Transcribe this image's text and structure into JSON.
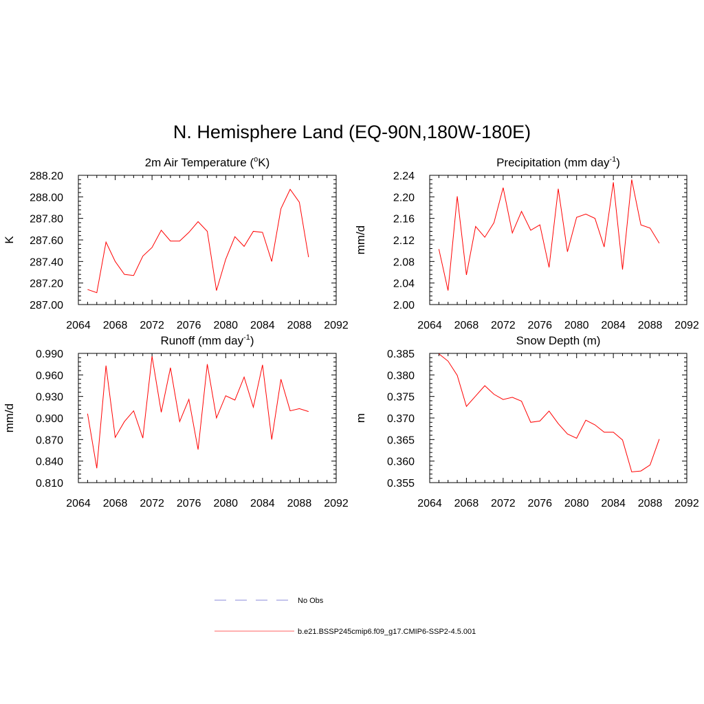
{
  "figure": {
    "title": "N. Hemisphere Land (EQ-90N,180W-180E)"
  },
  "chart_data": [
    {
      "type": "line",
      "title": "2m Air Temperature (",
      "title_sup": "o",
      "title_end": "K)",
      "ylabel": "K",
      "xlabel": "",
      "xlim": [
        2064,
        2092
      ],
      "ylim": [
        287.0,
        288.2
      ],
      "xticks": [
        2064,
        2068,
        2072,
        2076,
        2080,
        2084,
        2088,
        2092
      ],
      "xtick_labels": [
        "2064",
        "2068",
        "2072",
        "2076",
        "2080",
        "2084",
        "2088",
        "2092"
      ],
      "yticks": [
        287.0,
        287.2,
        287.4,
        287.6,
        287.8,
        288.0,
        288.2
      ],
      "ytick_labels": [
        "287.00",
        "287.20",
        "287.40",
        "287.60",
        "287.80",
        "288.00",
        "288.20"
      ],
      "grid": false,
      "series": [
        {
          "color": "#ff0000",
          "x": [
            2065,
            2066,
            2067,
            2068,
            2069,
            2070,
            2071,
            2072,
            2073,
            2074,
            2075,
            2076,
            2077,
            2078,
            2079,
            2080,
            2081,
            2082,
            2083,
            2084,
            2085,
            2086,
            2087,
            2088,
            2089
          ],
          "y": [
            287.14,
            287.11,
            287.58,
            287.4,
            287.28,
            287.27,
            287.45,
            287.53,
            287.69,
            287.59,
            287.59,
            287.67,
            287.77,
            287.68,
            287.13,
            287.42,
            287.63,
            287.54,
            287.68,
            287.67,
            287.4,
            287.89,
            288.07,
            287.95,
            287.44
          ]
        }
      ]
    },
    {
      "type": "line",
      "title": "Precipitation (mm day",
      "title_sup": "-1",
      "title_end": ")",
      "ylabel": "mm/d",
      "xlabel": "",
      "xlim": [
        2064,
        2092
      ],
      "ylim": [
        2.0,
        2.24
      ],
      "xticks": [
        2064,
        2068,
        2072,
        2076,
        2080,
        2084,
        2088,
        2092
      ],
      "xtick_labels": [
        "2064",
        "2068",
        "2072",
        "2076",
        "2080",
        "2084",
        "2088",
        "2092"
      ],
      "yticks": [
        2.0,
        2.04,
        2.08,
        2.12,
        2.16,
        2.2,
        2.24
      ],
      "ytick_labels": [
        "2.00",
        "2.04",
        "2.08",
        "2.12",
        "2.16",
        "2.20",
        "2.24"
      ],
      "grid": false,
      "series": [
        {
          "color": "#ff0000",
          "x": [
            2065,
            2066,
            2067,
            2068,
            2069,
            2070,
            2071,
            2072,
            2073,
            2074,
            2075,
            2076,
            2077,
            2078,
            2079,
            2080,
            2081,
            2082,
            2083,
            2084,
            2085,
            2086,
            2087,
            2088,
            2089
          ],
          "y": [
            2.103,
            2.026,
            2.201,
            2.055,
            2.145,
            2.125,
            2.152,
            2.217,
            2.133,
            2.173,
            2.138,
            2.148,
            2.069,
            2.215,
            2.098,
            2.162,
            2.168,
            2.16,
            2.107,
            2.227,
            2.065,
            2.232,
            2.148,
            2.142,
            2.114
          ]
        }
      ]
    },
    {
      "type": "line",
      "title": "Runoff (mm day",
      "title_sup": "-1",
      "title_end": ")",
      "ylabel": "mm/d",
      "xlabel": "",
      "xlim": [
        2064,
        2092
      ],
      "ylim": [
        0.81,
        0.99
      ],
      "xticks": [
        2064,
        2068,
        2072,
        2076,
        2080,
        2084,
        2088,
        2092
      ],
      "xtick_labels": [
        "2064",
        "2068",
        "2072",
        "2076",
        "2080",
        "2084",
        "2088",
        "2092"
      ],
      "yticks": [
        0.81,
        0.84,
        0.87,
        0.9,
        0.93,
        0.96,
        0.99
      ],
      "ytick_labels": [
        "0.810",
        "0.840",
        "0.870",
        "0.900",
        "0.930",
        "0.960",
        "0.990"
      ],
      "grid": false,
      "series": [
        {
          "color": "#ff0000",
          "x": [
            2065,
            2066,
            2067,
            2068,
            2069,
            2070,
            2071,
            2072,
            2073,
            2074,
            2075,
            2076,
            2077,
            2078,
            2079,
            2080,
            2081,
            2082,
            2083,
            2084,
            2085,
            2086,
            2087,
            2088,
            2089
          ],
          "y": [
            0.906,
            0.83,
            0.973,
            0.873,
            0.895,
            0.91,
            0.872,
            0.986,
            0.908,
            0.97,
            0.895,
            0.926,
            0.856,
            0.975,
            0.9,
            0.931,
            0.925,
            0.957,
            0.915,
            0.974,
            0.87,
            0.954,
            0.91,
            0.913,
            0.909
          ]
        }
      ]
    },
    {
      "type": "line",
      "title": "Snow Depth (m)",
      "title_sup": "",
      "title_end": "",
      "ylabel": "m",
      "xlabel": "",
      "xlim": [
        2064,
        2092
      ],
      "ylim": [
        0.355,
        0.385
      ],
      "xticks": [
        2064,
        2068,
        2072,
        2076,
        2080,
        2084,
        2088,
        2092
      ],
      "xtick_labels": [
        "2064",
        "2068",
        "2072",
        "2076",
        "2080",
        "2084",
        "2088",
        "2092"
      ],
      "yticks": [
        0.355,
        0.36,
        0.365,
        0.37,
        0.375,
        0.38,
        0.385
      ],
      "ytick_labels": [
        "0.355",
        "0.360",
        "0.365",
        "0.370",
        "0.375",
        "0.380",
        "0.385"
      ],
      "grid": false,
      "series": [
        {
          "color": "#ff0000",
          "x": [
            2065,
            2066,
            2067,
            2068,
            2069,
            2070,
            2071,
            2072,
            2073,
            2074,
            2075,
            2076,
            2077,
            2078,
            2079,
            2080,
            2081,
            2082,
            2083,
            2084,
            2085,
            2086,
            2087,
            2088,
            2089
          ],
          "y": [
            0.3849,
            0.3832,
            0.3799,
            0.3727,
            0.3751,
            0.3775,
            0.3755,
            0.3743,
            0.3748,
            0.3739,
            0.369,
            0.3693,
            0.3716,
            0.3687,
            0.3663,
            0.3653,
            0.3695,
            0.3684,
            0.3667,
            0.3667,
            0.3649,
            0.3575,
            0.3577,
            0.3591,
            0.3651
          ]
        }
      ]
    }
  ],
  "legend": {
    "placement": "bottom-center",
    "items": [
      {
        "label": "No Obs",
        "color": "#8a8ad8",
        "dashed": true
      },
      {
        "label": "b.e21.BSSP245cmip6.f09_g17.CMIP6-SSP2-4.5.001",
        "color": "#ff6060",
        "dashed": false
      }
    ]
  }
}
